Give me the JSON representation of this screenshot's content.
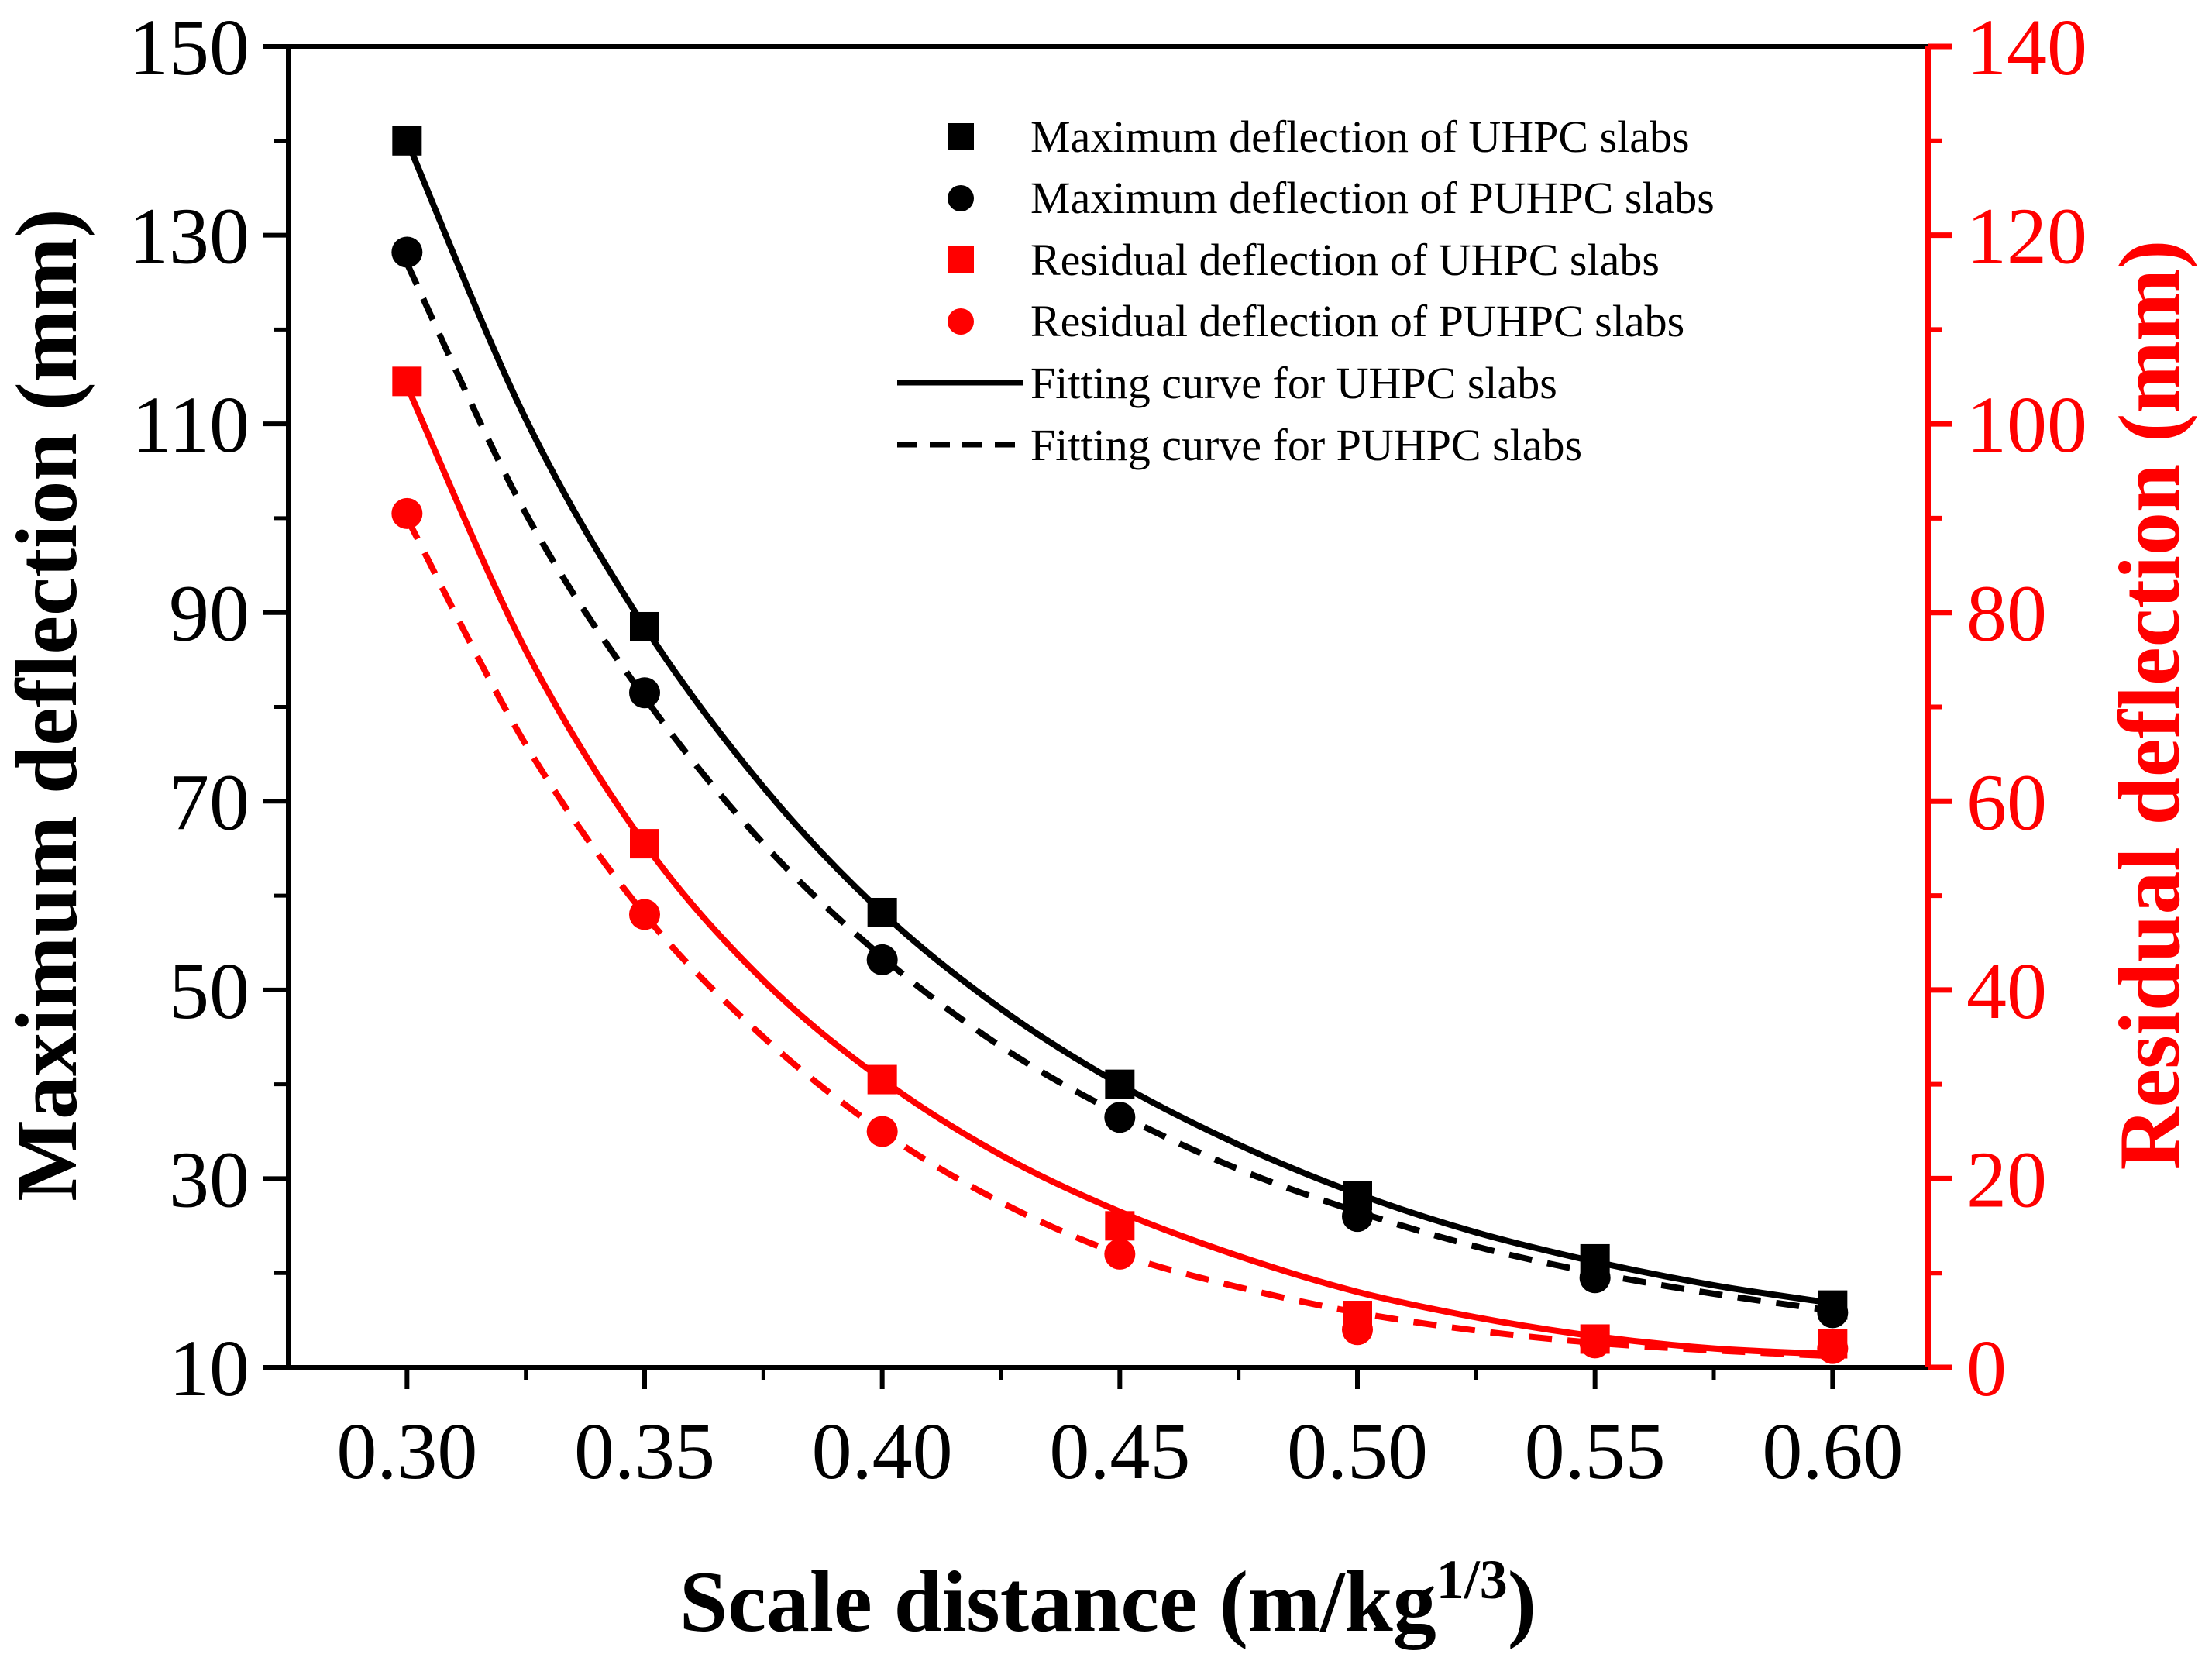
{
  "chart_data": {
    "type": "scatter",
    "x_axis": {
      "label_main": "Scale distance (m/kg",
      "label_sup": "1/3",
      "label_close": ")",
      "ticks": [
        0.3,
        0.35,
        0.4,
        0.45,
        0.5,
        0.55,
        0.6
      ],
      "tick_labels": [
        "0.30",
        "0.35",
        "0.40",
        "0.45",
        "0.50",
        "0.55",
        "0.60"
      ],
      "range": [
        0.275,
        0.62
      ]
    },
    "y_left": {
      "label": "Maximum deflection (mm)",
      "ticks": [
        10,
        30,
        50,
        70,
        90,
        110,
        130,
        150
      ],
      "tick_labels": [
        "10",
        "30",
        "50",
        "70",
        "90",
        "110",
        "130",
        "150"
      ],
      "range": [
        10,
        150
      ],
      "color": "#000000"
    },
    "y_right": {
      "label": "Residual deflection (mm)",
      "ticks": [
        0,
        20,
        40,
        60,
        80,
        100,
        120,
        140
      ],
      "tick_labels": [
        "0",
        "20",
        "40",
        "60",
        "80",
        "100",
        "120",
        "140"
      ],
      "range": [
        0,
        140
      ],
      "color": "#ff0000"
    },
    "x": [
      0.3,
      0.35,
      0.4,
      0.45,
      0.5,
      0.55,
      0.6
    ],
    "series": [
      {
        "name": "Maximum deflection of UHPC slabs",
        "axis": "left",
        "marker": "square",
        "color": "#000000",
        "values": [
          140.0,
          88.5,
          58.2,
          40.0,
          28.2,
          21.5,
          16.6
        ]
      },
      {
        "name": "Maximum deflection of PUHPC slabs",
        "axis": "left",
        "marker": "circle",
        "color": "#000000",
        "values": [
          128.2,
          81.5,
          53.2,
          36.5,
          26.0,
          19.5,
          15.8
        ]
      },
      {
        "name": "Residual deflection of UHPC slabs",
        "axis": "right",
        "marker": "square",
        "color": "#ff0000",
        "values": [
          104.5,
          55.5,
          30.5,
          15.0,
          5.5,
          3.0,
          2.5
        ]
      },
      {
        "name": "Residual deflection of PUHPC slabs",
        "axis": "right",
        "marker": "circle",
        "color": "#ff0000",
        "values": [
          90.5,
          48.0,
          25.0,
          12.0,
          4.0,
          2.6,
          2.0
        ]
      }
    ],
    "fits": [
      {
        "name": "Fitting curve for UHPC slabs",
        "style": "solid",
        "axis": "left",
        "color": "#000000",
        "x": [
          0.3,
          0.325,
          0.35,
          0.375,
          0.4,
          0.425,
          0.45,
          0.475,
          0.5,
          0.525,
          0.55,
          0.575,
          0.6
        ],
        "y": [
          140.0,
          110.5,
          88.5,
          71.5,
          58.2,
          48.0,
          40.0,
          33.6,
          28.4,
          24.3,
          21.2,
          18.7,
          16.8
        ]
      },
      {
        "name": "Fitting curve for PUHPC slabs",
        "style": "dashed",
        "axis": "left",
        "color": "#000000",
        "x": [
          0.3,
          0.325,
          0.35,
          0.375,
          0.4,
          0.425,
          0.45,
          0.475,
          0.5,
          0.525,
          0.55,
          0.575,
          0.6
        ],
        "y": [
          127.0,
          100.5,
          81.0,
          65.5,
          53.5,
          44.0,
          36.8,
          31.0,
          26.5,
          22.8,
          20.0,
          17.8,
          16.0
        ]
      },
      {
        "axis": "right",
        "style": "solid",
        "color": "#ff0000",
        "x": [
          0.3,
          0.325,
          0.35,
          0.375,
          0.4,
          0.425,
          0.45,
          0.475,
          0.5,
          0.525,
          0.55,
          0.575,
          0.6
        ],
        "y": [
          104.0,
          76.0,
          55.5,
          41.0,
          30.5,
          22.5,
          16.5,
          11.8,
          8.0,
          5.3,
          3.3,
          2.0,
          1.4
        ]
      },
      {
        "axis": "right",
        "style": "dashed",
        "color": "#ff0000",
        "x": [
          0.3,
          0.325,
          0.35,
          0.375,
          0.4,
          0.425,
          0.45,
          0.475,
          0.5,
          0.525,
          0.55,
          0.575,
          0.6
        ],
        "y": [
          90.0,
          66.0,
          48.0,
          35.0,
          25.0,
          17.5,
          12.0,
          8.5,
          5.8,
          3.9,
          2.6,
          1.8,
          1.2
        ]
      }
    ],
    "legend": {
      "position": "top-right",
      "entries": [
        "Maximum deflection of UHPC slabs",
        "Maximum deflection of PUHPC slabs",
        "Residual deflection of UHPC slabs",
        "Residual deflection of PUHPC slabs",
        "Fitting curve for UHPC slabs",
        "Fitting curve for PUHPC slabs"
      ]
    },
    "grid": false
  }
}
